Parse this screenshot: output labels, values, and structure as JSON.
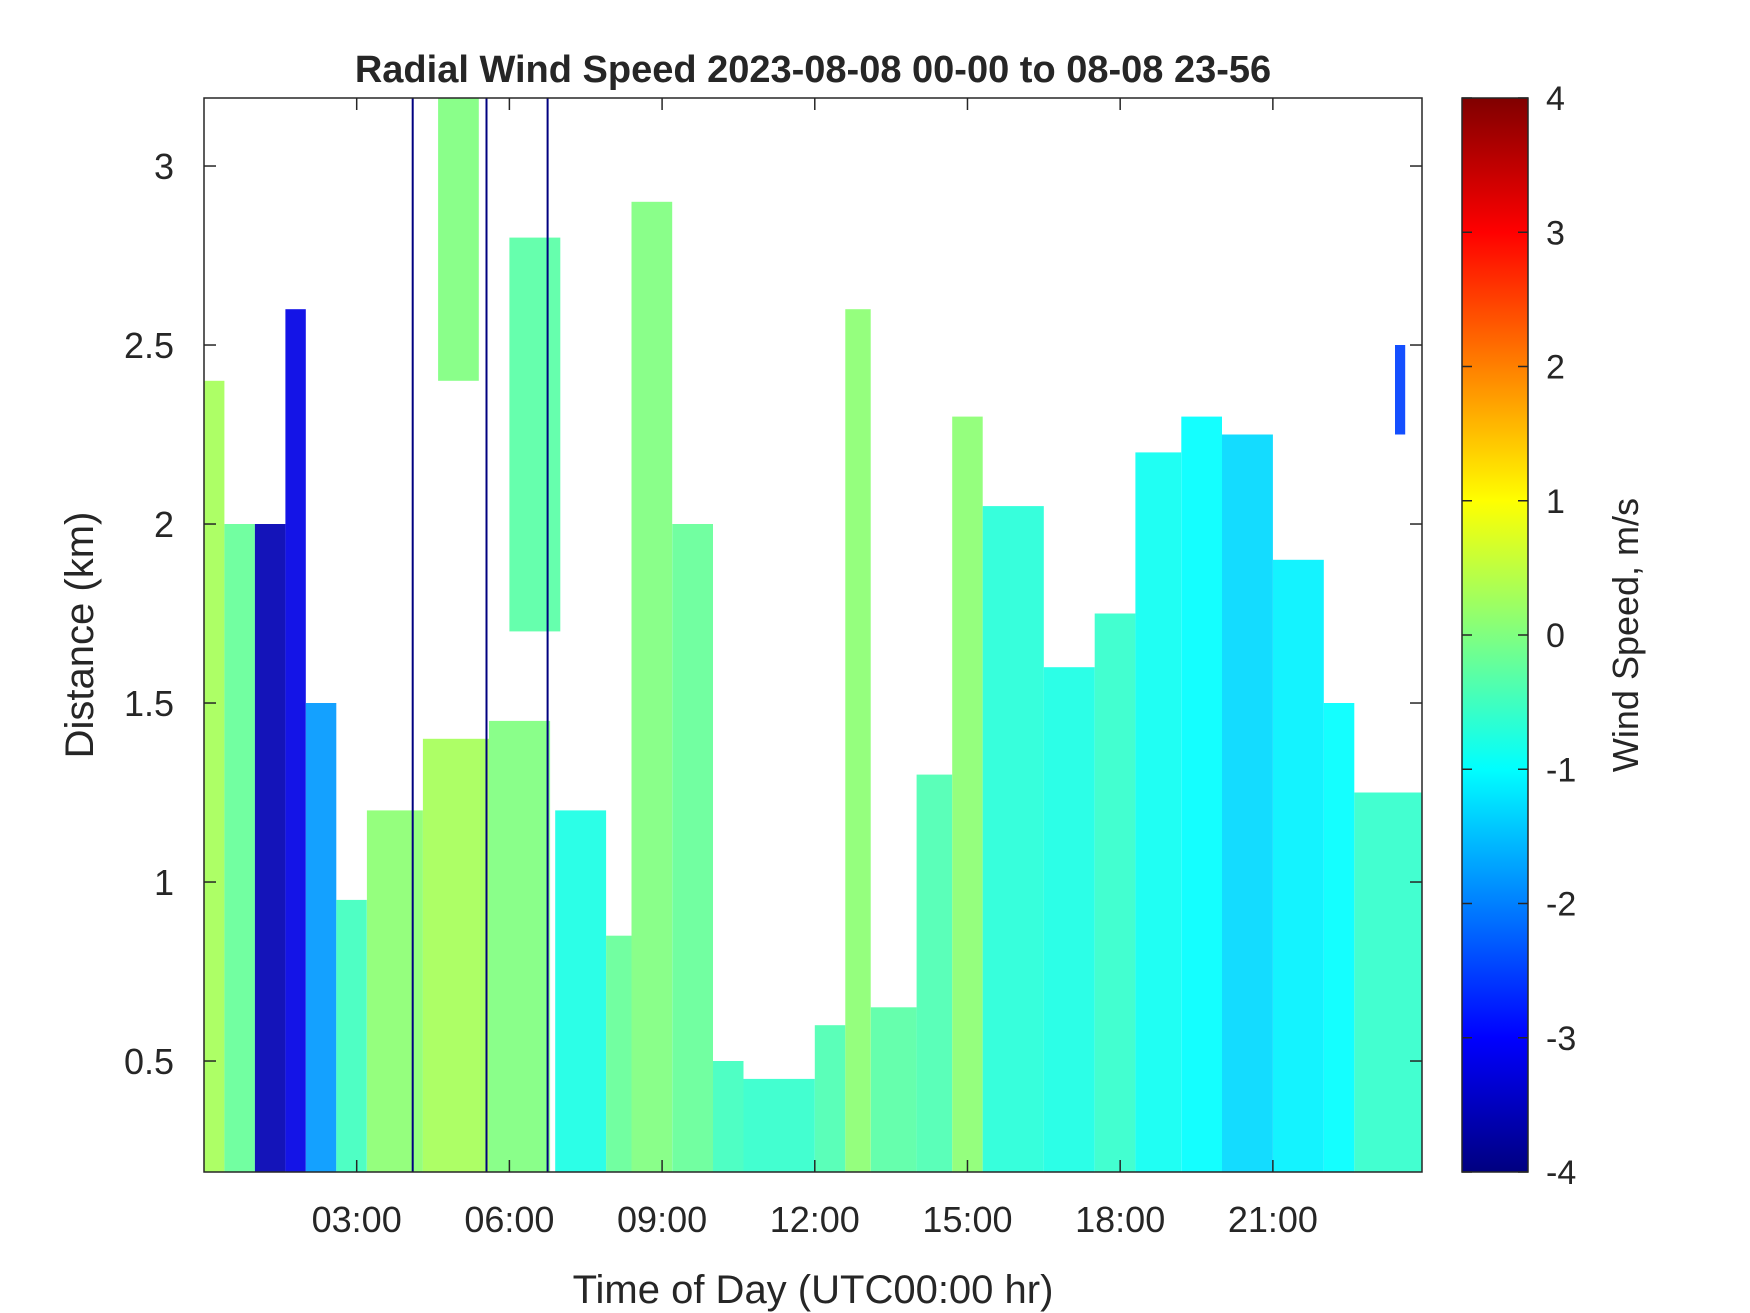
{
  "chart_data": {
    "type": "heatmap",
    "title": "Radial Wind Speed 2023-08-08 00-00 to 08-08 23-56",
    "xlabel": "Time of Day (UTC00:00 hr)",
    "ylabel": "Distance (km)",
    "x_unit": "hours UTC",
    "xlim": [
      0,
      23.93
    ],
    "ylim": [
      0.19,
      3.19
    ],
    "x_ticks": [
      {
        "value": 3,
        "label": "03:00"
      },
      {
        "value": 6,
        "label": "06:00"
      },
      {
        "value": 9,
        "label": "09:00"
      },
      {
        "value": 12,
        "label": "12:00"
      },
      {
        "value": 15,
        "label": "15:00"
      },
      {
        "value": 18,
        "label": "18:00"
      },
      {
        "value": 21,
        "label": "21:00"
      }
    ],
    "y_ticks": [
      {
        "value": 0.5,
        "label": "0.5"
      },
      {
        "value": 1,
        "label": "1"
      },
      {
        "value": 1.5,
        "label": "1.5"
      },
      {
        "value": 2,
        "label": "2"
      },
      {
        "value": 2.5,
        "label": "2.5"
      },
      {
        "value": 3,
        "label": "3"
      }
    ],
    "colorbar": {
      "label": "Wind Speed, m/s",
      "colormap": "jet",
      "range": [
        -4,
        4
      ],
      "ticks": [
        {
          "value": 4,
          "label": "4"
        },
        {
          "value": 3,
          "label": "3"
        },
        {
          "value": 2,
          "label": "2"
        },
        {
          "value": 1,
          "label": "1"
        },
        {
          "value": 0,
          "label": "0"
        },
        {
          "value": -1,
          "label": "-1"
        },
        {
          "value": -2,
          "label": "-2"
        },
        {
          "value": -3,
          "label": "-3"
        },
        {
          "value": -4,
          "label": "-4"
        }
      ]
    },
    "missing_data": "white",
    "regions": [
      {
        "x": [
          0,
          0.4
        ],
        "y_top": 2.4,
        "value": 0.3
      },
      {
        "x": [
          0.4,
          1.0
        ],
        "y_top": 2.0,
        "value": -0.2
      },
      {
        "x": [
          1.0,
          1.6
        ],
        "y_top": 2.0,
        "value": -3.6
      },
      {
        "x": [
          1.6,
          2.0
        ],
        "y_top": 2.6,
        "value": -3.2
      },
      {
        "x": [
          2.0,
          2.6
        ],
        "y_top": 1.5,
        "value": -1.8
      },
      {
        "x": [
          2.6,
          3.2
        ],
        "y_top": 0.95,
        "value": -0.5
      },
      {
        "x": [
          3.2,
          4.3
        ],
        "y_top": 1.2,
        "value": 0.1
      },
      {
        "x": [
          4.3,
          5.6
        ],
        "y_top": 1.4,
        "value": 0.3
      },
      {
        "x": [
          4.6,
          5.4
        ],
        "y_top": 3.19,
        "y_bottom": 2.4,
        "value": 0.0
      },
      {
        "x": [
          5.6,
          6.8
        ],
        "y_top": 1.45,
        "value": 0.0
      },
      {
        "x": [
          6.0,
          7.0
        ],
        "y_top": 2.8,
        "y_bottom": 1.7,
        "value": -0.3
      },
      {
        "x": [
          6.9,
          7.9
        ],
        "y_top": 1.2,
        "value": -0.8
      },
      {
        "x": [
          7.9,
          8.4
        ],
        "y_top": 0.85,
        "value": -0.2
      },
      {
        "x": [
          8.4,
          9.2
        ],
        "y_top": 2.9,
        "value": 0.0
      },
      {
        "x": [
          9.2,
          10.0
        ],
        "y_top": 2.0,
        "value": -0.2
      },
      {
        "x": [
          10.0,
          10.6
        ],
        "y_top": 0.5,
        "value": -0.5
      },
      {
        "x": [
          10.6,
          12.0
        ],
        "y_top": 0.45,
        "value": -0.6
      },
      {
        "x": [
          12.0,
          12.6
        ],
        "y_top": 0.6,
        "value": -0.4
      },
      {
        "x": [
          12.6,
          13.1
        ],
        "y_top": 2.6,
        "value": 0.1
      },
      {
        "x": [
          13.1,
          14.0
        ],
        "y_top": 0.65,
        "value": -0.3
      },
      {
        "x": [
          14.0,
          14.7
        ],
        "y_top": 1.3,
        "value": -0.4
      },
      {
        "x": [
          14.7,
          15.3
        ],
        "y_top": 2.3,
        "value": 0.1
      },
      {
        "x": [
          15.3,
          16.5
        ],
        "y_top": 2.05,
        "value": -0.7
      },
      {
        "x": [
          16.5,
          17.5
        ],
        "y_top": 1.6,
        "value": -0.8
      },
      {
        "x": [
          17.5,
          18.3
        ],
        "y_top": 1.75,
        "value": -0.6
      },
      {
        "x": [
          18.3,
          19.2
        ],
        "y_top": 2.2,
        "value": -0.9
      },
      {
        "x": [
          19.2,
          20.0
        ],
        "y_top": 2.3,
        "value": -1.0
      },
      {
        "x": [
          20.0,
          21.0
        ],
        "y_top": 2.25,
        "value": -1.3
      },
      {
        "x": [
          21.0,
          22.0
        ],
        "y_top": 1.9,
        "value": -1.1
      },
      {
        "x": [
          22.0,
          22.6
        ],
        "y_top": 1.5,
        "value": -1.0
      },
      {
        "x": [
          22.6,
          23.93
        ],
        "y_top": 1.25,
        "value": -0.6
      },
      {
        "x": [
          23.4,
          23.6
        ],
        "y_top": 2.5,
        "y_bottom": 2.25,
        "value": -2.5
      }
    ],
    "lines": [
      {
        "x": 4.1,
        "value": -4.0
      },
      {
        "x": 5.55,
        "value": -4.0
      },
      {
        "x": 6.75,
        "value": -4.0
      }
    ]
  }
}
